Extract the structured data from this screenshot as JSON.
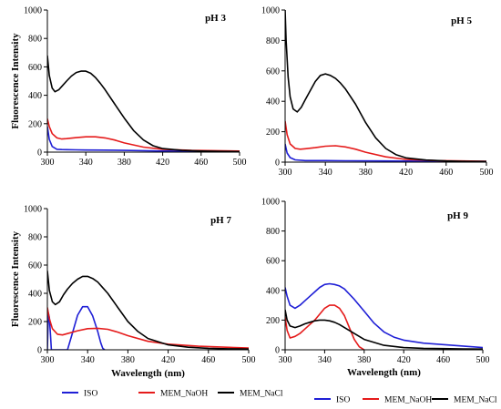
{
  "chart_data": [
    {
      "type": "line",
      "panel_label": "pH 3",
      "ylabel": "Fluorescence Intensity",
      "xlabel": "",
      "xlim": [
        300,
        500
      ],
      "ylim": [
        0,
        1000
      ],
      "xticks": [
        300,
        340,
        380,
        420,
        460,
        500
      ],
      "yticks": [
        0,
        200,
        400,
        600,
        800,
        1000
      ],
      "series": [
        {
          "name": "ISO",
          "color": "#1f1fd6",
          "x": [
            300,
            302,
            305,
            310,
            315,
            320,
            330,
            340,
            360,
            380,
            400,
            420,
            450,
            500
          ],
          "y": [
            180,
            90,
            40,
            20,
            18,
            17,
            16,
            15,
            14,
            12,
            10,
            8,
            6,
            5
          ]
        },
        {
          "name": "MEM_NaOH",
          "color": "#e51b1b",
          "x": [
            300,
            302,
            305,
            310,
            315,
            320,
            330,
            340,
            350,
            360,
            370,
            380,
            400,
            420,
            450,
            500
          ],
          "y": [
            235,
            180,
            130,
            100,
            92,
            95,
            102,
            108,
            108,
            100,
            85,
            65,
            35,
            20,
            12,
            8
          ]
        },
        {
          "name": "MEM_NaCl",
          "color": "#000000",
          "x": [
            300,
            302,
            305,
            308,
            312,
            316,
            320,
            325,
            330,
            335,
            340,
            345,
            350,
            355,
            360,
            370,
            380,
            390,
            400,
            410,
            420,
            440,
            460,
            480,
            500
          ],
          "y": [
            680,
            540,
            450,
            425,
            440,
            470,
            500,
            535,
            560,
            570,
            570,
            555,
            525,
            485,
            440,
            340,
            240,
            150,
            85,
            45,
            25,
            12,
            8,
            5,
            4
          ]
        }
      ]
    },
    {
      "type": "line",
      "panel_label": "pH 5",
      "ylabel": "",
      "xlabel": "",
      "xlim": [
        300,
        500
      ],
      "ylim": [
        0,
        1000
      ],
      "xticks": [
        300,
        340,
        380,
        420,
        460,
        500
      ],
      "yticks": [
        0,
        200,
        400,
        600,
        800,
        1000
      ],
      "series": [
        {
          "name": "ISO",
          "color": "#1f1fd6",
          "x": [
            300,
            302,
            305,
            310,
            320,
            340,
            360,
            400,
            450,
            500
          ],
          "y": [
            120,
            60,
            30,
            15,
            10,
            10,
            9,
            8,
            6,
            5
          ]
        },
        {
          "name": "MEM_NaOH",
          "color": "#e51b1b",
          "x": [
            300,
            302,
            305,
            310,
            315,
            320,
            330,
            340,
            350,
            360,
            370,
            380,
            400,
            420,
            450,
            500
          ],
          "y": [
            270,
            180,
            120,
            90,
            85,
            88,
            95,
            105,
            108,
            100,
            85,
            65,
            35,
            18,
            10,
            6
          ]
        },
        {
          "name": "MEM_NaCl",
          "color": "#000000",
          "x": [
            300,
            301,
            303,
            305,
            308,
            312,
            316,
            320,
            325,
            330,
            335,
            340,
            345,
            350,
            355,
            360,
            370,
            380,
            390,
            400,
            410,
            420,
            440,
            460,
            480,
            500
          ],
          "y": [
            1000,
            800,
            560,
            430,
            350,
            330,
            360,
            410,
            470,
            530,
            570,
            580,
            570,
            550,
            520,
            480,
            380,
            260,
            160,
            90,
            50,
            28,
            14,
            8,
            5,
            4
          ]
        }
      ]
    },
    {
      "type": "line",
      "panel_label": "pH 7",
      "ylabel": "Fluorescence Intensity",
      "xlabel": "Wavelength (nm)",
      "xlim": [
        300,
        500
      ],
      "ylim": [
        0,
        1000
      ],
      "xticks": [
        300,
        340,
        380,
        420,
        460,
        500
      ],
      "yticks": [
        0,
        200,
        400,
        600,
        800,
        1000
      ],
      "series": [
        {
          "name": "ISO",
          "color": "#1f1fd6",
          "x": [
            300,
            301,
            302,
            303,
            304,
            306,
            308,
            311,
            315,
            320,
            325,
            330,
            335,
            340,
            345,
            350,
            353,
            355,
            357
          ],
          "y": [
            0,
            260,
            230,
            120,
            0,
            0,
            0,
            0,
            0,
            0,
            120,
            245,
            305,
            305,
            240,
            130,
            50,
            10,
            0
          ]
        },
        {
          "name": "MEM_NaOH",
          "color": "#e51b1b",
          "x": [
            300,
            302,
            305,
            310,
            315,
            320,
            330,
            340,
            350,
            360,
            370,
            380,
            400,
            420,
            450,
            500
          ],
          "y": [
            300,
            220,
            150,
            110,
            105,
            115,
            135,
            150,
            152,
            145,
            125,
            100,
            60,
            40,
            25,
            12
          ]
        },
        {
          "name": "MEM_NaCl",
          "color": "#000000",
          "x": [
            300,
            302,
            305,
            308,
            312,
            316,
            320,
            325,
            330,
            335,
            340,
            345,
            350,
            355,
            360,
            370,
            380,
            390,
            400,
            420,
            440,
            460,
            480,
            500
          ],
          "y": [
            560,
            420,
            340,
            320,
            340,
            390,
            430,
            470,
            500,
            520,
            520,
            505,
            480,
            440,
            400,
            300,
            200,
            130,
            80,
            35,
            18,
            10,
            7,
            5
          ]
        }
      ]
    },
    {
      "type": "line",
      "panel_label": "pH 9",
      "ylabel": "",
      "xlabel": "Wavelength (nm)",
      "xlim": [
        300,
        500
      ],
      "ylim": [
        0,
        1000
      ],
      "xticks": [
        300,
        340,
        380,
        420,
        460,
        500
      ],
      "yticks": [
        0,
        200,
        400,
        600,
        800,
        1000
      ],
      "series": [
        {
          "name": "ISO",
          "color": "#1f1fd6",
          "x": [
            300,
            302,
            305,
            310,
            315,
            320,
            325,
            330,
            335,
            340,
            345,
            350,
            355,
            360,
            370,
            380,
            390,
            400,
            410,
            420,
            440,
            460,
            480,
            500
          ],
          "y": [
            420,
            360,
            300,
            280,
            300,
            330,
            360,
            390,
            420,
            440,
            445,
            440,
            430,
            410,
            340,
            260,
            180,
            120,
            85,
            65,
            45,
            35,
            25,
            15
          ]
        },
        {
          "name": "MEM_NaOH",
          "color": "#e51b1b",
          "x": [
            300,
            302,
            305,
            310,
            315,
            320,
            325,
            330,
            335,
            340,
            345,
            350,
            355,
            360,
            365,
            370,
            375,
            380
          ],
          "y": [
            220,
            130,
            80,
            90,
            110,
            140,
            170,
            200,
            240,
            280,
            300,
            300,
            280,
            230,
            150,
            70,
            20,
            0
          ]
        },
        {
          "name": "MEM_NaCl",
          "color": "#000000",
          "x": [
            300,
            302,
            305,
            310,
            315,
            320,
            325,
            330,
            335,
            340,
            345,
            350,
            355,
            360,
            370,
            380,
            400,
            420,
            440,
            460,
            480,
            500
          ],
          "y": [
            270,
            200,
            160,
            150,
            160,
            175,
            185,
            195,
            200,
            200,
            195,
            185,
            170,
            150,
            110,
            70,
            30,
            15,
            10,
            8,
            6,
            5
          ]
        }
      ]
    }
  ],
  "legend": {
    "left": [
      "ISO",
      "MEM_NaOH",
      "MEM_NaCl"
    ],
    "right": [
      "ISO",
      "MEM_NaOH",
      "MEM_NaCl"
    ]
  }
}
